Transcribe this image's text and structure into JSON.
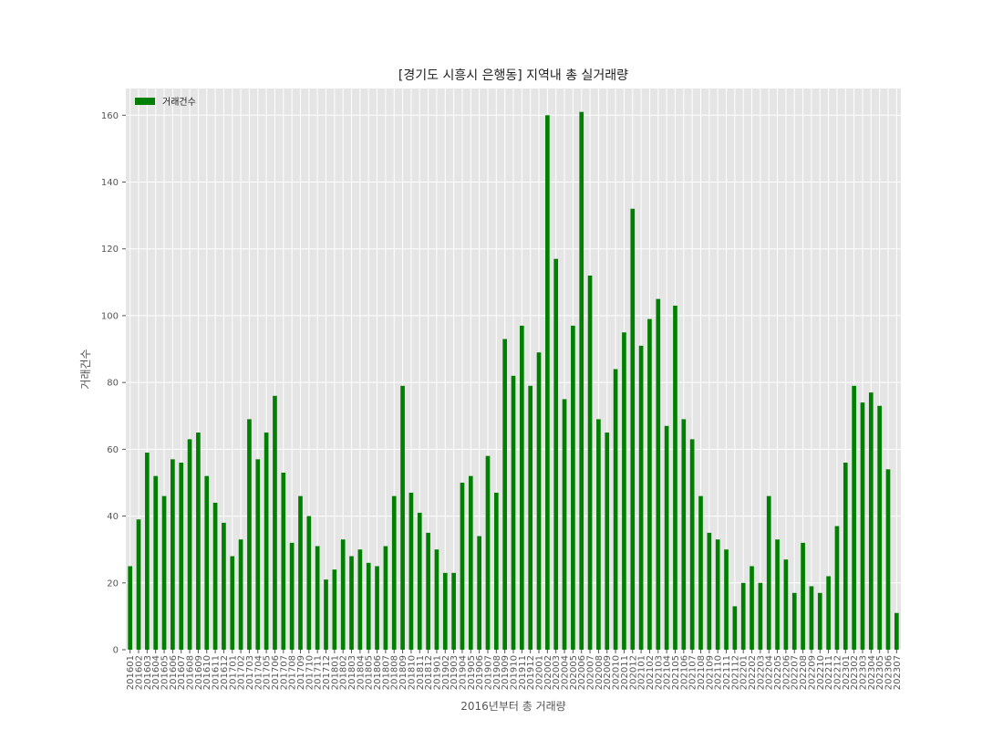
{
  "chart_data": {
    "type": "bar",
    "title": "[경기도 시흥시 은행동] 지역내 총 실거래량",
    "xlabel": "2016년부터 총 거래량",
    "ylabel": "거래건수",
    "ylim": [
      0,
      168
    ],
    "yticks": [
      0,
      20,
      40,
      60,
      80,
      100,
      120,
      140,
      160
    ],
    "grid": true,
    "legend_position": "top-left",
    "bar_color": "#008000",
    "background_color": "#e5e5e5",
    "grid_color": "#ffffff",
    "categories": [
      "201601",
      "201602",
      "201603",
      "201604",
      "201605",
      "201606",
      "201607",
      "201608",
      "201609",
      "201610",
      "201611",
      "201612",
      "201701",
      "201702",
      "201703",
      "201704",
      "201705",
      "201706",
      "201707",
      "201708",
      "201709",
      "201710",
      "201711",
      "201712",
      "201801",
      "201802",
      "201803",
      "201804",
      "201805",
      "201806",
      "201807",
      "201808",
      "201809",
      "201810",
      "201811",
      "201812",
      "201901",
      "201902",
      "201903",
      "201904",
      "201905",
      "201906",
      "201907",
      "201908",
      "201909",
      "201910",
      "201911",
      "201912",
      "202001",
      "202002",
      "202003",
      "202004",
      "202005",
      "202006",
      "202007",
      "202008",
      "202009",
      "202010",
      "202011",
      "202012",
      "202101",
      "202102",
      "202103",
      "202104",
      "202105",
      "202106",
      "202107",
      "202108",
      "202109",
      "202110",
      "202111",
      "202112",
      "202201",
      "202202",
      "202203",
      "202204",
      "202205",
      "202206",
      "202207",
      "202208",
      "202209",
      "202210",
      "202211",
      "202212",
      "202301",
      "202302",
      "202303",
      "202304",
      "202305",
      "202306",
      "202307"
    ],
    "series": [
      {
        "name": "거래건수",
        "values": [
          25,
          39,
          59,
          52,
          46,
          57,
          56,
          63,
          65,
          52,
          44,
          38,
          28,
          33,
          69,
          57,
          65,
          76,
          53,
          32,
          46,
          40,
          31,
          21,
          24,
          33,
          28,
          30,
          26,
          25,
          31,
          46,
          79,
          47,
          41,
          35,
          30,
          23,
          23,
          50,
          52,
          34,
          58,
          47,
          93,
          82,
          97,
          79,
          89,
          160,
          117,
          75,
          97,
          161,
          112,
          69,
          65,
          84,
          95,
          132,
          91,
          99,
          105,
          67,
          103,
          69,
          63,
          46,
          35,
          33,
          30,
          13,
          20,
          25,
          20,
          46,
          33,
          27,
          17,
          32,
          19,
          17,
          22,
          37,
          56,
          79,
          74,
          77,
          73,
          54,
          11
        ]
      }
    ]
  }
}
